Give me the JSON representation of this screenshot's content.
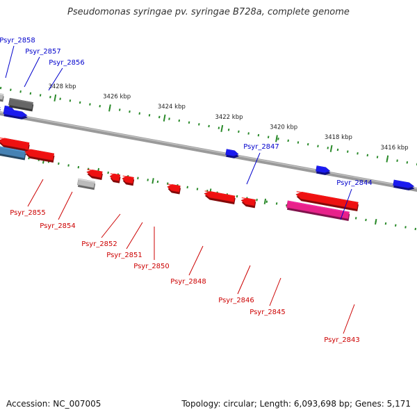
{
  "title": "Pseudomonas syringae pv. syringae B728a, complete genome",
  "footer": {
    "accession": "Accession: NC_007005",
    "topology": "Topology: circular; Length: 6,093,698 bp; Genes: 5,171"
  },
  "colors": {
    "backbone": "#888888",
    "forward_label": "#0000cc",
    "reverse_label": "#cc0000",
    "gene_blue": "#1a1aee",
    "gene_red": "#ee1111",
    "gene_gray": "#bbbbbb",
    "gene_dark": "#666666",
    "gene_steel": "#4682b4",
    "gene_pink": "#e8228a",
    "tick_green": "#2a8a2a"
  },
  "ticks": [
    {
      "label": "3428 kbp"
    },
    {
      "label": "3426 kbp"
    },
    {
      "label": "3424 kbp"
    },
    {
      "label": "3422 kbp"
    },
    {
      "label": "3420 kbp"
    },
    {
      "label": "3418 kbp"
    },
    {
      "label": "3416 kbp"
    }
  ],
  "forward_genes": [
    {
      "label": "Psyr_2858"
    },
    {
      "label": "Psyr_2857"
    },
    {
      "label": "Psyr_2856"
    },
    {
      "label": "Psyr_2847"
    },
    {
      "label": "Psyr_2844"
    }
  ],
  "reverse_genes": [
    {
      "label": "Psyr_2855"
    },
    {
      "label": "Psyr_2854"
    },
    {
      "label": "Psyr_2852"
    },
    {
      "label": "Psyr_2851"
    },
    {
      "label": "Psyr_2850"
    },
    {
      "label": "Psyr_2848"
    },
    {
      "label": "Psyr_2846"
    },
    {
      "label": "Psyr_2845"
    },
    {
      "label": "Psyr_2843"
    }
  ]
}
